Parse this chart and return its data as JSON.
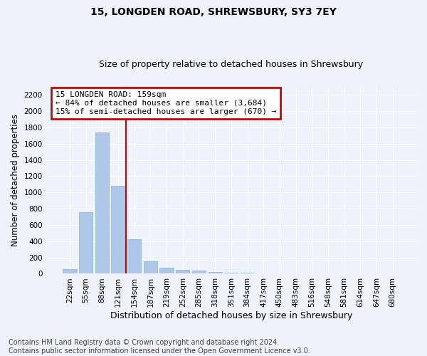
{
  "title": "15, LONGDEN ROAD, SHREWSBURY, SY3 7EY",
  "subtitle": "Size of property relative to detached houses in Shrewsbury",
  "xlabel": "Distribution of detached houses by size in Shrewsbury",
  "ylabel": "Number of detached properties",
  "footnote1": "Contains HM Land Registry data © Crown copyright and database right 2024.",
  "footnote2": "Contains public sector information licensed under the Open Government Licence v3.0.",
  "categories": [
    "22sqm",
    "55sqm",
    "88sqm",
    "121sqm",
    "154sqm",
    "187sqm",
    "219sqm",
    "252sqm",
    "285sqm",
    "318sqm",
    "351sqm",
    "384sqm",
    "417sqm",
    "450sqm",
    "483sqm",
    "516sqm",
    "548sqm",
    "581sqm",
    "614sqm",
    "647sqm",
    "680sqm"
  ],
  "values": [
    60,
    760,
    1740,
    1080,
    420,
    155,
    75,
    45,
    35,
    25,
    15,
    10,
    0,
    0,
    0,
    0,
    0,
    0,
    0,
    0,
    0
  ],
  "bar_color": "#aec6e8",
  "bar_edge_color": "#8ab4d8",
  "vline_index": 3,
  "vline_color": "#cc0000",
  "ylim": [
    0,
    2300
  ],
  "yticks": [
    0,
    200,
    400,
    600,
    800,
    1000,
    1200,
    1400,
    1600,
    1800,
    2000,
    2200
  ],
  "ann_line1": "15 LONGDEN ROAD: 159sqm",
  "ann_line2": "← 84% of detached houses are smaller (3,684)",
  "ann_line3": "15% of semi-detached houses are larger (670) →",
  "annotation_box_color": "#cc0000",
  "background_color": "#eef2fb",
  "grid_color": "#ffffff",
  "title_fontsize": 10,
  "subtitle_fontsize": 9,
  "tick_fontsize": 7.5,
  "ylabel_fontsize": 8.5,
  "xlabel_fontsize": 9,
  "ann_fontsize": 8,
  "footnote_fontsize": 7
}
